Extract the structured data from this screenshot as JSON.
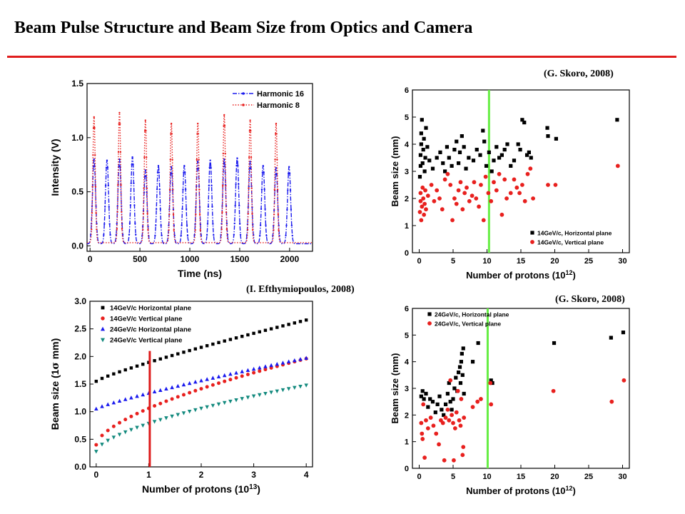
{
  "page": {
    "title": "Beam Pulse Structure and Beam Size from Optics and Camera",
    "colors": {
      "rule": "#e01d1d",
      "black": "#000000",
      "red": "#e8201e",
      "blue": "#1a1aee",
      "teal": "#138a7e",
      "green": "#66ee44",
      "vline_red": "#dd1b1b"
    },
    "credits": [
      "(G. Skoro, 2008)",
      "(I. Efthymiopoulos, 2008)",
      "(G. Skoro, 2008)"
    ]
  },
  "chart_data": [
    {
      "type": "line",
      "xlabel": "Time (ns)",
      "ylabel": "Intensity (V)",
      "xlim": [
        -30,
        2230
      ],
      "ylim": [
        -0.05,
        1.5
      ],
      "xticks": [
        0,
        500,
        1000,
        1500,
        2000
      ],
      "xtick_labels": [
        "0",
        "500",
        "1000",
        "1500",
        "2000"
      ],
      "yticks": [
        0.0,
        0.5,
        1.0,
        1.5
      ],
      "ytick_labels": [
        "0.0",
        "0.5",
        "1.0",
        "1.5"
      ],
      "legend_position": "top-right",
      "series": [
        {
          "name": "Harmonic 16",
          "color": "#1a1aee",
          "style": "dash-dot",
          "baseline": 0.02,
          "pulse_width": 22,
          "peaks": [
            [
              40,
              0.8
            ],
            [
              170,
              0.79
            ],
            [
              295,
              0.8
            ],
            [
              425,
              0.82
            ],
            [
              555,
              0.7
            ],
            [
              685,
              0.74
            ],
            [
              815,
              0.73
            ],
            [
              945,
              0.74
            ],
            [
              1080,
              0.78
            ],
            [
              1205,
              0.79
            ],
            [
              1345,
              0.8
            ],
            [
              1475,
              0.81
            ],
            [
              1605,
              0.78
            ],
            [
              1735,
              0.74
            ],
            [
              1865,
              0.72
            ],
            [
              1995,
              0.73
            ]
          ]
        },
        {
          "name": "Harmonic 8",
          "color": "#e8201e",
          "style": "dotted",
          "baseline": 0.03,
          "pulse_width": 17,
          "peaks": [
            [
              40,
              1.19
            ],
            [
              295,
              1.23
            ],
            [
              555,
              1.16
            ],
            [
              815,
              1.13
            ],
            [
              1080,
              1.13
            ],
            [
              1345,
              1.21
            ],
            [
              1605,
              1.16
            ],
            [
              1865,
              1.13
            ]
          ]
        }
      ]
    },
    {
      "type": "scatter",
      "xlabel": "Number of protons (10",
      "xlabel_sup": "12",
      "xlabel_end": ")",
      "ylabel": "Beam size (mm)",
      "xlim": [
        -1,
        31
      ],
      "ylim": [
        0,
        6
      ],
      "xticks": [
        0,
        5,
        10,
        15,
        20,
        25,
        30
      ],
      "xtick_labels": [
        "0",
        "5",
        "10",
        "15",
        "20",
        "25",
        "30"
      ],
      "yticks": [
        0,
        1,
        2,
        3,
        4,
        5,
        6
      ],
      "ytick_labels": [
        "0",
        "1",
        "2",
        "3",
        "4",
        "5",
        "6"
      ],
      "legend_position": "bottom-right",
      "vline": {
        "x": 10.3,
        "color": "#66ee44"
      },
      "series": [
        {
          "name": "14GeV/c, Horizontal plane",
          "color": "#000000",
          "marker": "square",
          "points": [
            [
              0.1,
              2.8
            ],
            [
              0.2,
              3.2
            ],
            [
              0.2,
              3.6
            ],
            [
              0.3,
              4.0
            ],
            [
              0.3,
              4.4
            ],
            [
              0.4,
              4.9
            ],
            [
              0.5,
              3.3
            ],
            [
              0.6,
              3.8
            ],
            [
              0.7,
              4.2
            ],
            [
              0.8,
              3.0
            ],
            [
              0.9,
              3.5
            ],
            [
              1.0,
              4.6
            ],
            [
              1.2,
              3.9
            ],
            [
              1.5,
              3.4
            ],
            [
              2.0,
              3.1
            ],
            [
              2.6,
              3.5
            ],
            [
              3.1,
              3.7
            ],
            [
              3.5,
              3.3
            ],
            [
              3.8,
              3.0
            ],
            [
              4.1,
              3.9
            ],
            [
              4.4,
              3.5
            ],
            [
              4.8,
              3.2
            ],
            [
              5.2,
              3.8
            ],
            [
              5.5,
              4.1
            ],
            [
              5.8,
              3.3
            ],
            [
              6.0,
              3.7
            ],
            [
              6.3,
              4.3
            ],
            [
              6.6,
              3.9
            ],
            [
              6.9,
              3.1
            ],
            [
              7.3,
              3.5
            ],
            [
              8.0,
              3.4
            ],
            [
              8.5,
              3.8
            ],
            [
              9.0,
              3.6
            ],
            [
              9.4,
              4.5
            ],
            [
              9.6,
              4.1
            ],
            [
              9.9,
              3.2
            ],
            [
              10.3,
              3.7
            ],
            [
              10.7,
              3.0
            ],
            [
              11.0,
              3.4
            ],
            [
              11.4,
              3.9
            ],
            [
              11.8,
              3.5
            ],
            [
              12.2,
              3.6
            ],
            [
              12.6,
              3.8
            ],
            [
              13.0,
              4.0
            ],
            [
              13.5,
              3.2
            ],
            [
              14.0,
              3.4
            ],
            [
              14.6,
              4.0
            ],
            [
              14.9,
              3.8
            ],
            [
              15.2,
              4.9
            ],
            [
              15.5,
              4.8
            ],
            [
              15.9,
              3.6
            ],
            [
              16.2,
              3.7
            ],
            [
              16.5,
              3.5
            ],
            [
              18.9,
              4.6
            ],
            [
              19.0,
              4.3
            ],
            [
              20.2,
              4.2
            ],
            [
              29.2,
              4.9
            ]
          ]
        },
        {
          "name": "14GeV/c, Vertical plane",
          "color": "#e8201e",
          "marker": "circle",
          "points": [
            [
              0.1,
              1.5
            ],
            [
              0.2,
              1.9
            ],
            [
              0.2,
              2.2
            ],
            [
              0.3,
              1.2
            ],
            [
              0.4,
              1.7
            ],
            [
              0.5,
              2.4
            ],
            [
              0.6,
              2.0
            ],
            [
              0.7,
              1.4
            ],
            [
              0.8,
              1.8
            ],
            [
              0.9,
              2.3
            ],
            [
              1.0,
              1.6
            ],
            [
              1.3,
              2.1
            ],
            [
              1.8,
              2.5
            ],
            [
              2.2,
              1.9
            ],
            [
              2.6,
              2.3
            ],
            [
              3.0,
              2.0
            ],
            [
              3.4,
              1.6
            ],
            [
              3.8,
              2.7
            ],
            [
              4.2,
              2.9
            ],
            [
              4.6,
              2.5
            ],
            [
              4.9,
              1.2
            ],
            [
              5.2,
              2.0
            ],
            [
              5.5,
              1.8
            ],
            [
              5.8,
              2.3
            ],
            [
              6.1,
              2.6
            ],
            [
              6.4,
              1.6
            ],
            [
              6.7,
              2.2
            ],
            [
              7.0,
              2.4
            ],
            [
              7.4,
              1.9
            ],
            [
              7.8,
              2.1
            ],
            [
              8.1,
              2.6
            ],
            [
              8.4,
              2.0
            ],
            [
              8.8,
              1.7
            ],
            [
              9.1,
              2.5
            ],
            [
              9.5,
              1.2
            ],
            [
              9.8,
              2.8
            ],
            [
              10.2,
              2.2
            ],
            [
              10.6,
              1.9
            ],
            [
              11.0,
              2.6
            ],
            [
              11.4,
              2.3
            ],
            [
              11.8,
              2.9
            ],
            [
              12.2,
              1.4
            ],
            [
              12.6,
              2.7
            ],
            [
              12.9,
              2.0
            ],
            [
              13.5,
              2.2
            ],
            [
              14.0,
              2.7
            ],
            [
              14.4,
              2.4
            ],
            [
              14.8,
              2.2
            ],
            [
              15.2,
              2.5
            ],
            [
              15.6,
              1.9
            ],
            [
              16.0,
              2.9
            ],
            [
              16.4,
              3.1
            ],
            [
              16.8,
              2.0
            ],
            [
              19.0,
              2.5
            ],
            [
              20.1,
              2.5
            ],
            [
              29.3,
              3.2
            ]
          ]
        }
      ]
    },
    {
      "type": "scatter",
      "xlabel": "Number of protons (10",
      "xlabel_sup": "13",
      "xlabel_end": ")",
      "ylabel": "Beam size (1",
      "ylabel_sym": "σ",
      "ylabel_end": " mm)",
      "xlim": [
        -0.12,
        4.12
      ],
      "ylim": [
        0,
        3
      ],
      "xticks": [
        0,
        1,
        2,
        3,
        4
      ],
      "xtick_labels": [
        "0",
        "1",
        "2",
        "3",
        "4"
      ],
      "yticks": [
        0.0,
        0.5,
        1.0,
        1.5,
        2.0,
        2.5,
        3.0
      ],
      "ytick_labels": [
        "0.0",
        "0.5",
        "1.0",
        "1.5",
        "2.0",
        "2.5",
        "3.0"
      ],
      "legend_position": "top-left",
      "vline": {
        "x": 1.02,
        "y_from": 0.0,
        "y_to": 2.1,
        "color": "#dd1b1b"
      },
      "series": [
        {
          "name": "14GeV/c Horizontal plane",
          "color": "#000000",
          "marker": "square",
          "x_start": 0.0,
          "x_end": 4.0,
          "count": 37,
          "y0": 1.55,
          "y1": 2.66,
          "curve": 0.85
        },
        {
          "name": "14GeV/c Vertical plane",
          "color": "#e8201e",
          "marker": "circle",
          "x_start": 0.0,
          "x_end": 4.0,
          "count": 37,
          "y0": 0.4,
          "y1": 1.96,
          "curve": 0.62
        },
        {
          "name": "24GeV/c Horizontal plane",
          "color": "#1a1aee",
          "marker": "triangle-up",
          "x_start": 0.0,
          "x_end": 4.0,
          "count": 37,
          "y0": 1.05,
          "y1": 1.97,
          "curve": 0.85
        },
        {
          "name": "24GeV/c Vertical plane",
          "color": "#138a7e",
          "marker": "triangle-down",
          "x_start": 0.0,
          "x_end": 4.0,
          "count": 37,
          "y0": 0.28,
          "y1": 1.48,
          "curve": 0.62
        }
      ]
    },
    {
      "type": "scatter",
      "xlabel": "Number of protons (10",
      "xlabel_sup": "12",
      "xlabel_end": ")",
      "ylabel": "Beam size (mm)",
      "xlim": [
        -1,
        31
      ],
      "ylim": [
        0,
        6
      ],
      "xticks": [
        0,
        5,
        10,
        15,
        20,
        25,
        30
      ],
      "xtick_labels": [
        "0",
        "5",
        "10",
        "15",
        "20",
        "25",
        "30"
      ],
      "yticks": [
        0,
        1,
        2,
        3,
        4,
        5,
        6
      ],
      "ytick_labels": [
        "0",
        "1",
        "2",
        "3",
        "4",
        "5",
        "6"
      ],
      "legend_position": "top-left",
      "vline": {
        "x": 10.1,
        "color": "#66ee44"
      },
      "series": [
        {
          "name": "24GeV/c, Horizontal plane",
          "color": "#000000",
          "marker": "square",
          "points": [
            [
              0.3,
              2.7
            ],
            [
              0.5,
              2.9
            ],
            [
              0.7,
              2.6
            ],
            [
              1.0,
              2.8
            ],
            [
              1.3,
              2.3
            ],
            [
              1.6,
              2.6
            ],
            [
              2.0,
              2.5
            ],
            [
              2.4,
              2.1
            ],
            [
              2.7,
              2.4
            ],
            [
              3.0,
              2.7
            ],
            [
              3.3,
              2.2
            ],
            [
              3.6,
              2.0
            ],
            [
              3.9,
              2.4
            ],
            [
              4.2,
              2.8
            ],
            [
              4.4,
              3.2
            ],
            [
              4.6,
              2.5
            ],
            [
              4.8,
              2.2
            ],
            [
              5.0,
              2.6
            ],
            [
              5.2,
              3.0
            ],
            [
              5.4,
              3.4
            ],
            [
              5.6,
              2.9
            ],
            [
              5.8,
              3.6
            ],
            [
              6.0,
              3.8
            ],
            [
              6.1,
              3.2
            ],
            [
              6.2,
              4.0
            ],
            [
              6.3,
              4.3
            ],
            [
              6.4,
              3.5
            ],
            [
              6.5,
              4.5
            ],
            [
              6.6,
              2.8
            ],
            [
              7.9,
              4.0
            ],
            [
              8.7,
              4.7
            ],
            [
              10.6,
              3.3
            ],
            [
              10.8,
              3.2
            ],
            [
              19.9,
              4.7
            ],
            [
              28.3,
              4.9
            ],
            [
              30.1,
              5.1
            ]
          ]
        },
        {
          "name": "24GeV/c, Vertical plane",
          "color": "#e8201e",
          "marker": "circle",
          "points": [
            [
              0.3,
              1.7
            ],
            [
              0.4,
              1.3
            ],
            [
              0.5,
              1.1
            ],
            [
              0.6,
              2.4
            ],
            [
              0.8,
              0.4
            ],
            [
              1.0,
              1.8
            ],
            [
              1.3,
              1.5
            ],
            [
              1.7,
              1.9
            ],
            [
              2.1,
              1.6
            ],
            [
              2.5,
              1.3
            ],
            [
              2.9,
              0.9
            ],
            [
              3.2,
              1.8
            ],
            [
              3.5,
              1.7
            ],
            [
              3.7,
              0.3
            ],
            [
              3.9,
              1.9
            ],
            [
              4.2,
              2.2
            ],
            [
              4.4,
              1.8
            ],
            [
              4.6,
              3.3
            ],
            [
              4.8,
              2.0
            ],
            [
              5.0,
              1.7
            ],
            [
              5.1,
              0.3
            ],
            [
              5.3,
              1.5
            ],
            [
              5.5,
              2.1
            ],
            [
              5.7,
              2.9
            ],
            [
              5.9,
              1.8
            ],
            [
              6.1,
              1.6
            ],
            [
              6.2,
              2.6
            ],
            [
              6.4,
              0.5
            ],
            [
              6.5,
              0.8
            ],
            [
              6.6,
              1.9
            ],
            [
              7.9,
              2.3
            ],
            [
              8.6,
              2.5
            ],
            [
              9.1,
              2.6
            ],
            [
              10.5,
              3.2
            ],
            [
              10.6,
              2.4
            ],
            [
              19.8,
              2.9
            ],
            [
              28.4,
              2.5
            ],
            [
              30.2,
              3.3
            ]
          ]
        }
      ]
    }
  ]
}
